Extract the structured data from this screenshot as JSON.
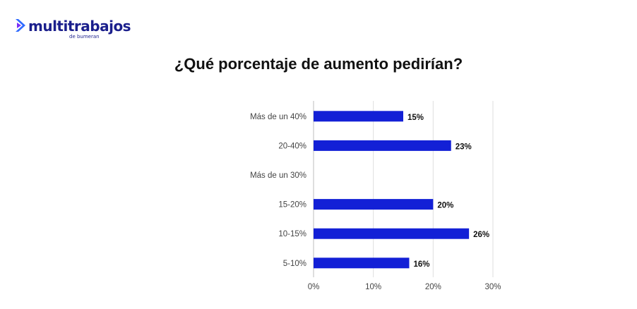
{
  "brand": {
    "name": "multitrabajos",
    "subtitle": "de bumeran",
    "color": "#1b1f8c",
    "accent": "#2f6bff"
  },
  "chart_data": {
    "type": "bar",
    "orientation": "horizontal",
    "title": "¿Qué porcentaje de aumento pedirían?",
    "categories": [
      "Más de un 40%",
      "20-40%",
      "Más de un 30%",
      "15-20%",
      "10-15%",
      "5-10%"
    ],
    "values": [
      15,
      23,
      null,
      20,
      26,
      16
    ],
    "data_labels": [
      "15%",
      "23%",
      "",
      "20%",
      "26%",
      "16%"
    ],
    "xlim": [
      0,
      30
    ],
    "x_ticks": [
      0,
      10,
      20,
      30
    ],
    "x_tick_labels": [
      "0%",
      "10%",
      "20%",
      "30%"
    ],
    "bar_color": "#1320d6",
    "grid": true,
    "legend": "none"
  }
}
